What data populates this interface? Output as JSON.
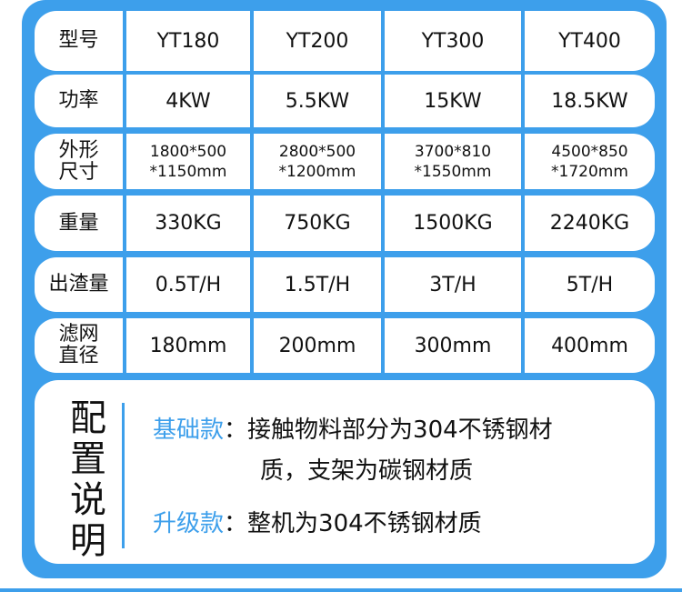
{
  "table": {
    "rows": [
      {
        "label": "型号",
        "values": [
          "YT180",
          "YT200",
          "YT300",
          "YT400"
        ]
      },
      {
        "label": "功率",
        "values": [
          "4KW",
          "5.5KW",
          "15KW",
          "18.5KW"
        ]
      },
      {
        "label": "外形尺寸",
        "label_lines": [
          "外形",
          "尺寸"
        ],
        "values": [
          [
            "1800*500",
            "*1150mm"
          ],
          [
            "2800*500",
            "*1200mm"
          ],
          [
            "3700*810",
            "*1550mm"
          ],
          [
            "4500*850",
            "*1720mm"
          ]
        ]
      },
      {
        "label": "重量",
        "values": [
          "330KG",
          "750KG",
          "1500KG",
          "2240KG"
        ]
      },
      {
        "label": "出渣量",
        "values": [
          "0.5T/H",
          "1.5T/H",
          "3T/H",
          "5T/H"
        ]
      },
      {
        "label_lines": [
          "滤网",
          "直径"
        ],
        "values": [
          "180mm",
          "200mm",
          "300mm",
          "400mm"
        ]
      }
    ]
  },
  "config": {
    "title_chars": [
      "配",
      "置",
      "说",
      "明"
    ],
    "basic": {
      "key": "基础款",
      "sep": "：",
      "line1": "接触物料部分为304不锈钢材",
      "line2": "质，支架为碳钢材质"
    },
    "upgrade": {
      "key": "升级款",
      "sep": "：",
      "text": "整机为304不锈钢材质"
    }
  },
  "colors": {
    "accent": "#3d9feb",
    "text": "#111111"
  }
}
